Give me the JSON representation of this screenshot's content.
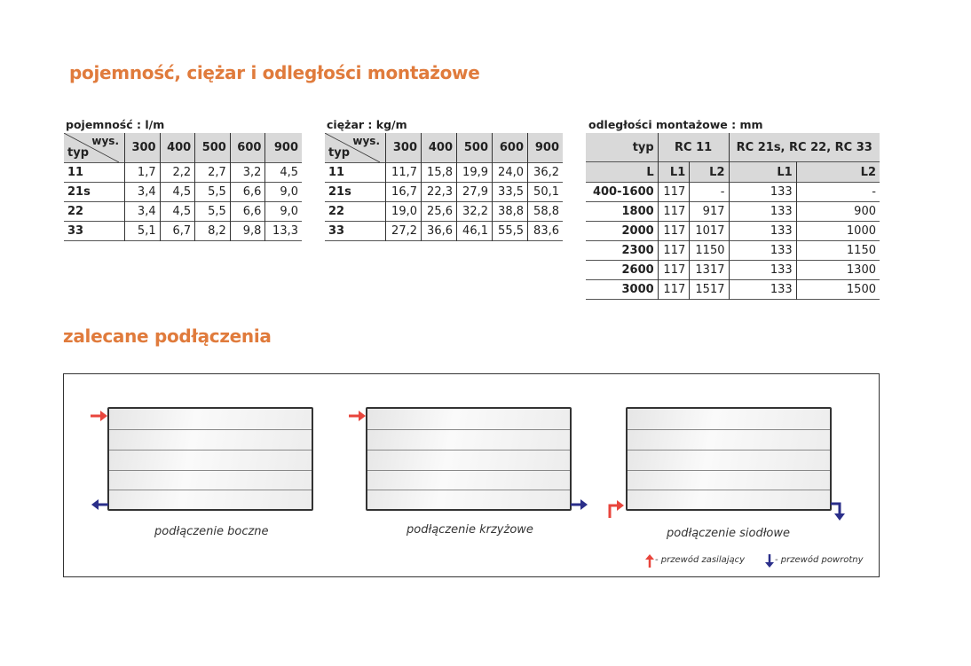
{
  "title": "pojemność, ciężar i odległości montażowe",
  "capacity": {
    "title": "pojemność : l/m",
    "corner_top": "wys.",
    "corner_bottom": "typ",
    "heights": [
      "300",
      "400",
      "500",
      "600",
      "900"
    ],
    "rows": [
      {
        "typ": "11",
        "v": [
          "1,7",
          "2,2",
          "2,7",
          "3,2",
          "4,5"
        ]
      },
      {
        "typ": "21s",
        "v": [
          "3,4",
          "4,5",
          "5,5",
          "6,6",
          "9,0"
        ]
      },
      {
        "typ": "22",
        "v": [
          "3,4",
          "4,5",
          "5,5",
          "6,6",
          "9,0"
        ]
      },
      {
        "typ": "33",
        "v": [
          "5,1",
          "6,7",
          "8,2",
          "9,8",
          "13,3"
        ]
      }
    ]
  },
  "weight": {
    "title": "ciężar : kg/m",
    "corner_top": "wys.",
    "corner_bottom": "typ",
    "heights": [
      "300",
      "400",
      "500",
      "600",
      "900"
    ],
    "rows": [
      {
        "typ": "11",
        "v": [
          "11,7",
          "15,8",
          "19,9",
          "24,0",
          "36,2"
        ]
      },
      {
        "typ": "21s",
        "v": [
          "16,7",
          "22,3",
          "27,9",
          "33,5",
          "50,1"
        ]
      },
      {
        "typ": "22",
        "v": [
          "19,0",
          "25,6",
          "32,2",
          "38,8",
          "58,8"
        ]
      },
      {
        "typ": "33",
        "v": [
          "27,2",
          "36,6",
          "46,1",
          "55,5",
          "83,6"
        ]
      }
    ]
  },
  "mounting": {
    "title": "odległości montażowe : mm",
    "typ": "typ",
    "group1": "RC 11",
    "group2": "RC 21s, RC 22, RC 33",
    "L": "L",
    "L1": "L1",
    "L2": "L2",
    "rows": [
      {
        "L": "400-1600",
        "v": [
          "117",
          "-",
          "133",
          "-"
        ]
      },
      {
        "L": "1800",
        "v": [
          "117",
          "917",
          "133",
          "900"
        ]
      },
      {
        "L": "2000",
        "v": [
          "117",
          "1017",
          "133",
          "1000"
        ]
      },
      {
        "L": "2300",
        "v": [
          "117",
          "1150",
          "133",
          "1150"
        ]
      },
      {
        "L": "2600",
        "v": [
          "117",
          "1317",
          "133",
          "1300"
        ]
      },
      {
        "L": "3000",
        "v": [
          "117",
          "1517",
          "133",
          "1500"
        ]
      }
    ]
  },
  "connections": {
    "title": "zalecane podłączenia",
    "items": [
      "podłączenie boczne",
      "podłączenie krzyżowe",
      "podłączenie siodłowe"
    ],
    "legend": {
      "supply": "- przewód zasilający",
      "return": "- przewód powrotny"
    },
    "colors": {
      "supply": "#e8453c",
      "return": "#2b2f8a",
      "heading": "#e07b3c"
    }
  }
}
